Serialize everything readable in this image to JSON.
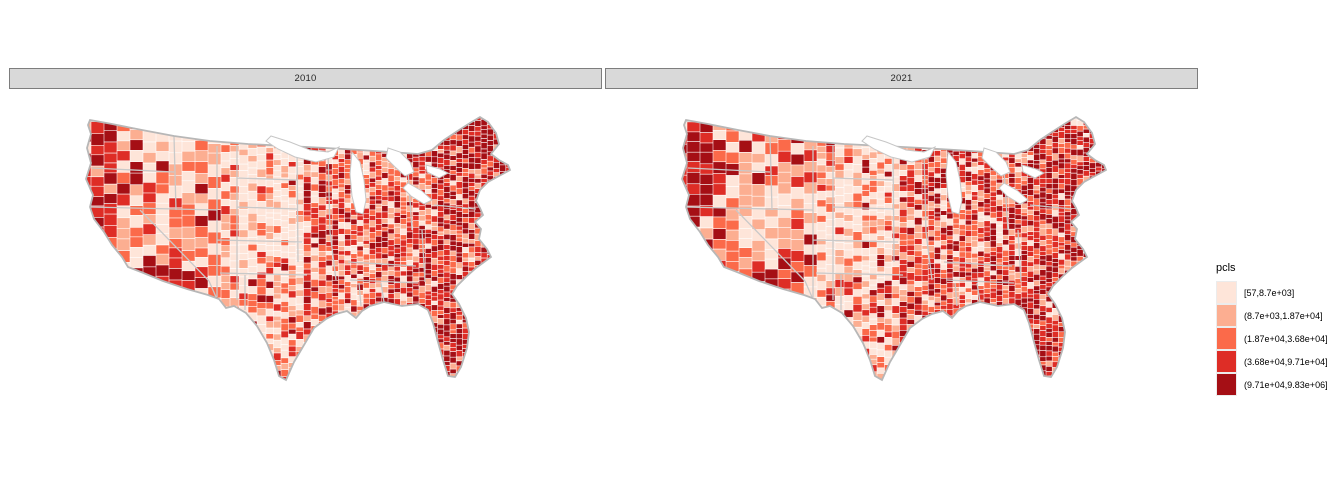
{
  "figure": {
    "background": "#ffffff",
    "facets": [
      {
        "label": "2010"
      },
      {
        "label": "2021"
      }
    ],
    "strip_fill": "#d9d9d9",
    "strip_border": "#7d7d7d",
    "strip_text_color": "#262626",
    "county_border_color": "#ffffff",
    "state_border_color": "#c9c9c9",
    "outline_color": "#b7b7b7"
  },
  "legend": {
    "title": "pcls",
    "position": "right"
  },
  "chart_data": {
    "type": "choropleth",
    "geography": "Contiguous United States, county level",
    "facets": [
      "2010",
      "2021"
    ],
    "legend_title": "pcls",
    "palette": "sequential Reds, 5 classes (light to dark)",
    "bins": [
      {
        "label": "[57,8.7e+03]",
        "min": 57,
        "max": 8700,
        "color": "#fee5d9"
      },
      {
        "label": "(8.7e+03,1.87e+04]",
        "min": 8700,
        "max": 18700,
        "color": "#fcae91"
      },
      {
        "label": "(1.87e+04,3.68e+04]",
        "min": 18700,
        "max": 36800,
        "color": "#fb6a4a"
      },
      {
        "label": "(3.68e+04,9.71e+04]",
        "min": 36800,
        "max": 97100,
        "color": "#de2d26"
      },
      {
        "label": "(9.71e+04,9.83e+06]",
        "min": 97100,
        "max": 9830000,
        "color": "#a50f15"
      }
    ],
    "pattern_note": "High (dark) classes along the West Coast, Arizona/Southwest, Upper Midwest metros, Northeast corridor and Florida; lowest (lightest) class dominates the Great Plains; mixed mid-to-high classes across the East; the 2010 and 2021 facets show nearly identical patterns with 2021 slightly darker in the East"
  }
}
